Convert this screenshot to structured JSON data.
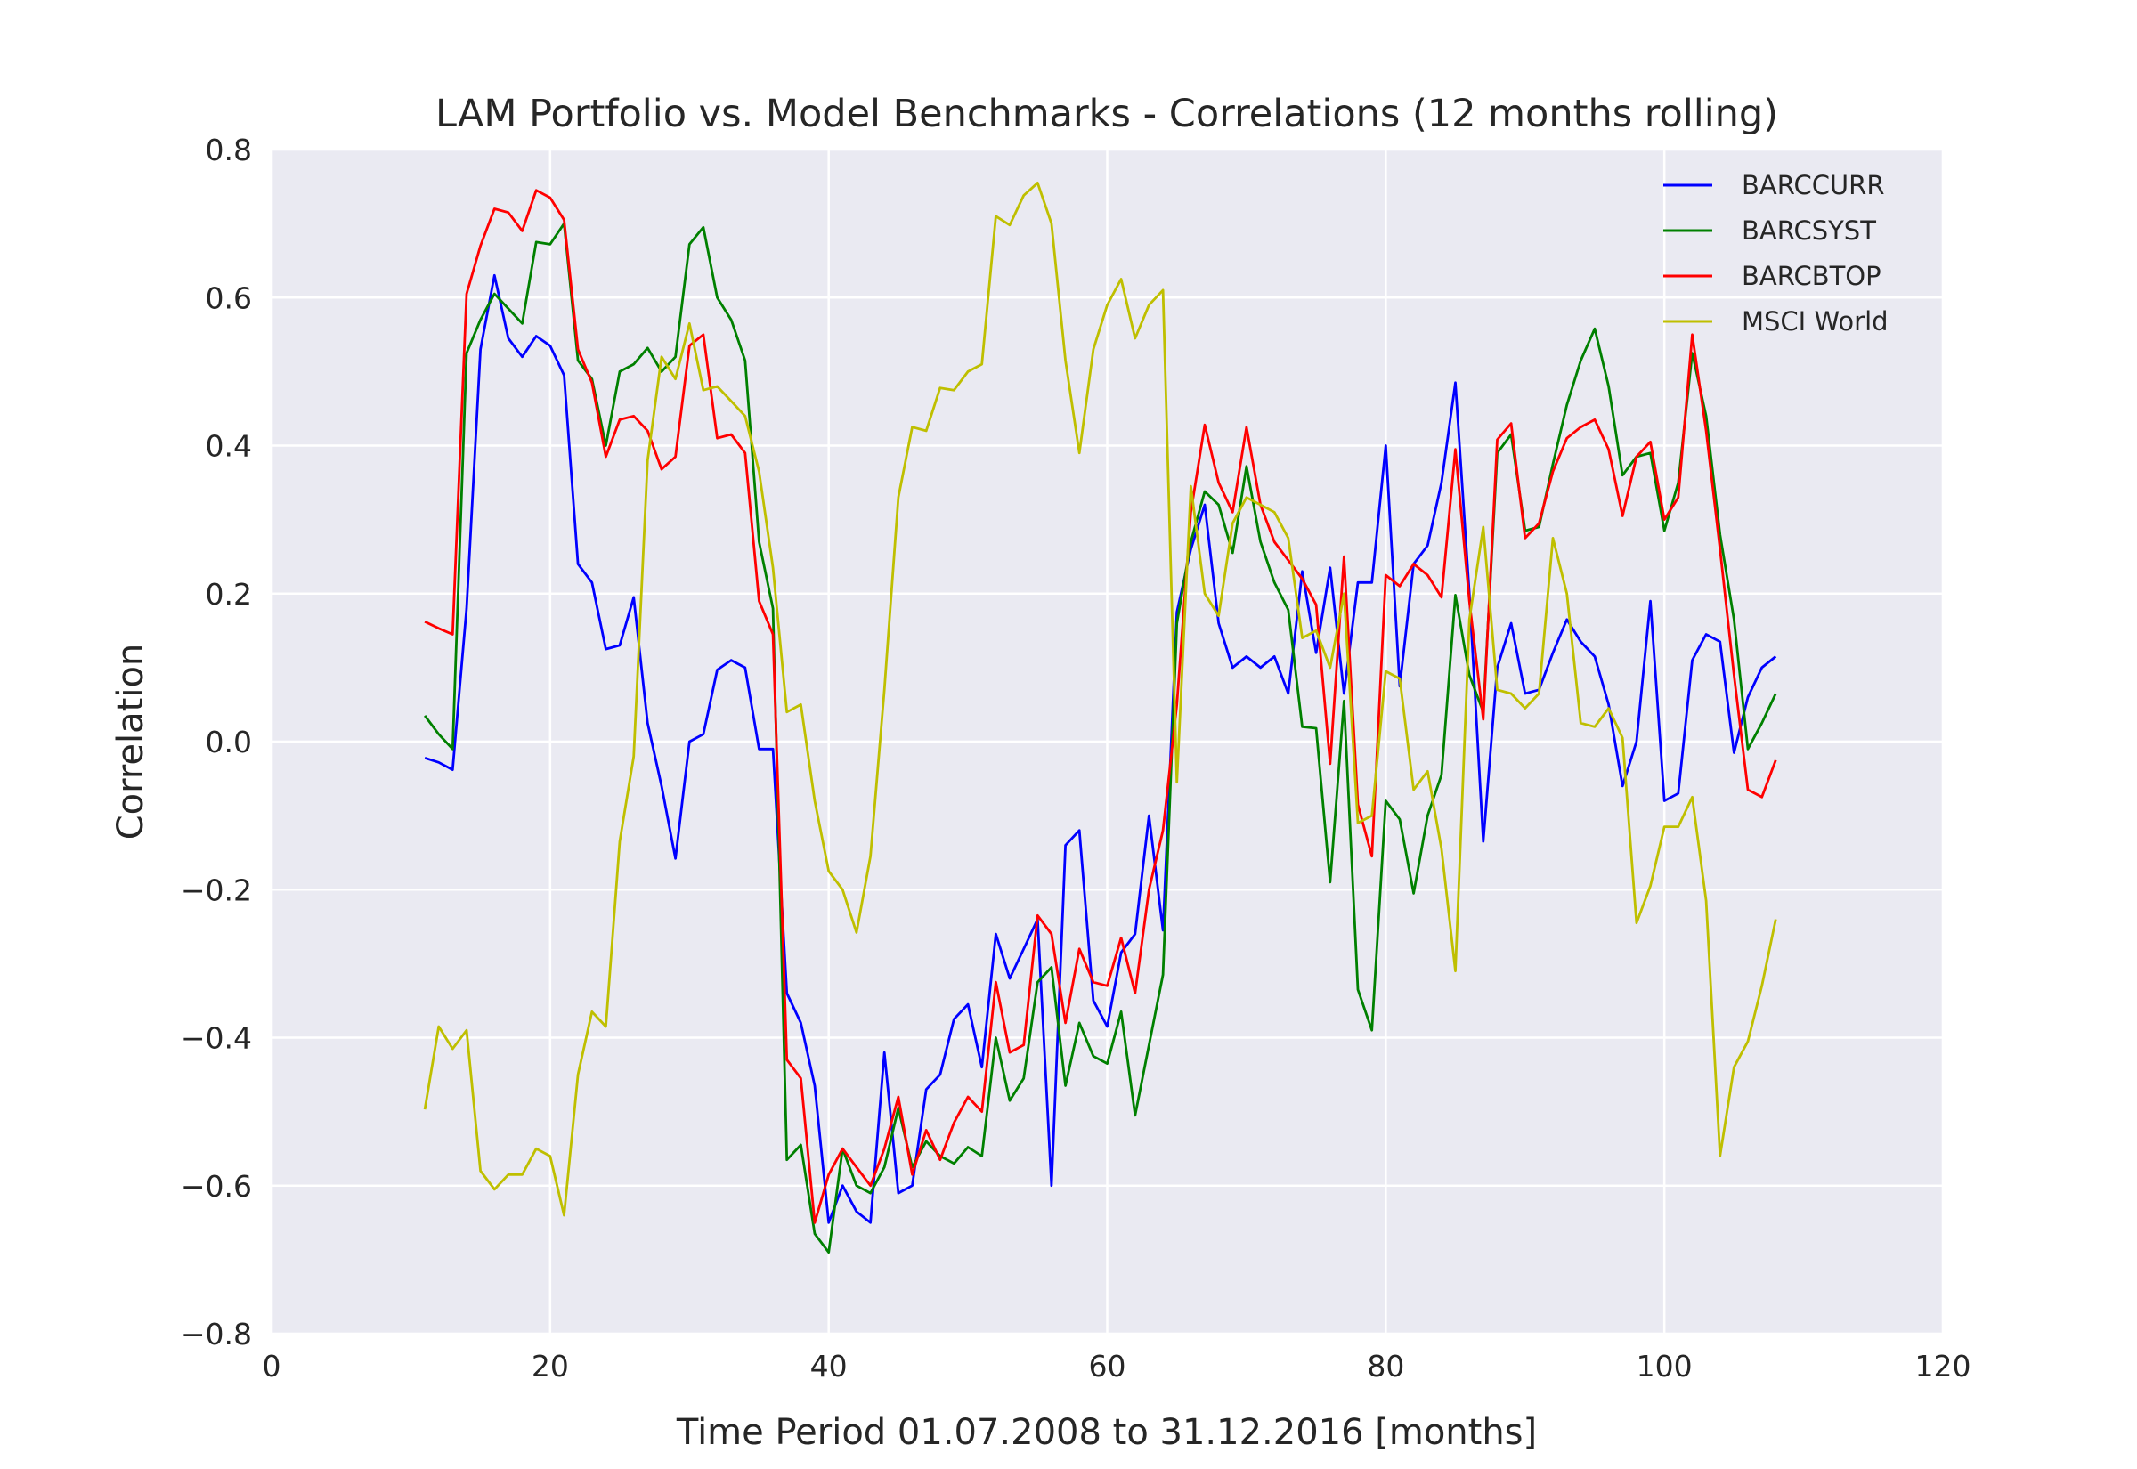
{
  "chart_data": {
    "type": "line",
    "title": "LAM Portfolio vs. Model Benchmarks - Correlations (12 months rolling)",
    "xlabel": "Time Period 01.07.2008 to 31.12.2016 [months]",
    "ylabel": "Correlation",
    "xlim": [
      0,
      120
    ],
    "ylim": [
      -0.8,
      0.8
    ],
    "xticks": [
      0,
      20,
      40,
      60,
      80,
      100,
      120
    ],
    "yticks": [
      -0.8,
      -0.6,
      -0.4,
      -0.2,
      0.0,
      0.2,
      0.4,
      0.6,
      0.8
    ],
    "xtick_labels": [
      "0",
      "20",
      "40",
      "60",
      "80",
      "100",
      "120"
    ],
    "ytick_labels": [
      "−0.8",
      "−0.6",
      "−0.4",
      "−0.2",
      "0.0",
      "0.2",
      "0.4",
      "0.6",
      "0.8"
    ],
    "grid": true,
    "background": "#eaeaf2",
    "legend_position": "top-right",
    "x": [
      11,
      12,
      13,
      14,
      15,
      16,
      17,
      18,
      19,
      20,
      21,
      22,
      23,
      24,
      25,
      26,
      27,
      28,
      29,
      30,
      31,
      32,
      33,
      34,
      35,
      36,
      37,
      38,
      39,
      40,
      41,
      42,
      43,
      44,
      45,
      46,
      47,
      48,
      49,
      50,
      51,
      52,
      53,
      54,
      55,
      56,
      57,
      58,
      59,
      60,
      61,
      62,
      63,
      64,
      65,
      66,
      67,
      68,
      69,
      70,
      71,
      72,
      73,
      74,
      75,
      76,
      77,
      78,
      79,
      80,
      81,
      82,
      83,
      84,
      85,
      86,
      87,
      88,
      89,
      90,
      91,
      92,
      93,
      94,
      95,
      96,
      97,
      98,
      99,
      100,
      101,
      102,
      103,
      104,
      105,
      106,
      107,
      108
    ],
    "series": [
      {
        "name": "BARCCURR",
        "color": "#0000ff",
        "values": [
          -0.022,
          -0.028,
          -0.038,
          0.18,
          0.53,
          0.63,
          0.545,
          0.52,
          0.548,
          0.535,
          0.495,
          0.24,
          0.215,
          0.125,
          0.13,
          0.195,
          0.025,
          -0.06,
          -0.158,
          0.0,
          0.01,
          0.097,
          0.11,
          0.1,
          -0.01,
          -0.01,
          -0.34,
          -0.38,
          -0.465,
          -0.65,
          -0.6,
          -0.635,
          -0.65,
          -0.42,
          -0.61,
          -0.6,
          -0.47,
          -0.45,
          -0.375,
          -0.355,
          -0.44,
          -0.26,
          -0.32,
          -0.28,
          -0.24,
          -0.6,
          -0.14,
          -0.12,
          -0.35,
          -0.385,
          -0.285,
          -0.26,
          -0.1,
          -0.255,
          0.175,
          0.26,
          0.32,
          0.16,
          0.1,
          0.115,
          0.1,
          0.115,
          0.065,
          0.23,
          0.12,
          0.235,
          0.065,
          0.215,
          0.215,
          0.4,
          0.075,
          0.24,
          0.265,
          0.35,
          0.485,
          0.2,
          -0.135,
          0.1,
          0.16,
          0.065,
          0.07,
          0.12,
          0.165,
          0.135,
          0.115,
          0.05,
          -0.06,
          0.0,
          0.19,
          -0.08,
          -0.07,
          0.11,
          0.145,
          0.135,
          -0.015,
          0.06,
          0.1,
          0.115
        ]
      },
      {
        "name": "BARCSYST",
        "color": "#008000",
        "values": [
          0.035,
          0.01,
          -0.01,
          0.525,
          0.57,
          0.605,
          0.585,
          0.565,
          0.675,
          0.672,
          0.7,
          0.515,
          0.49,
          0.4,
          0.5,
          0.51,
          0.532,
          0.5,
          0.52,
          0.672,
          0.695,
          0.6,
          0.57,
          0.515,
          0.27,
          0.18,
          -0.565,
          -0.545,
          -0.665,
          -0.69,
          -0.55,
          -0.6,
          -0.61,
          -0.575,
          -0.495,
          -0.575,
          -0.54,
          -0.56,
          -0.57,
          -0.548,
          -0.56,
          -0.4,
          -0.485,
          -0.455,
          -0.325,
          -0.305,
          -0.465,
          -0.38,
          -0.425,
          -0.435,
          -0.365,
          -0.505,
          -0.41,
          -0.315,
          0.16,
          0.27,
          0.338,
          0.32,
          0.255,
          0.372,
          0.27,
          0.215,
          0.178,
          0.02,
          0.018,
          -0.19,
          0.055,
          -0.335,
          -0.39,
          -0.08,
          -0.105,
          -0.205,
          -0.1,
          -0.045,
          0.198,
          0.09,
          0.04,
          0.39,
          0.415,
          0.285,
          0.29,
          0.375,
          0.455,
          0.515,
          0.558,
          0.48,
          0.36,
          0.385,
          0.39,
          0.285,
          0.35,
          0.525,
          0.44,
          0.28,
          0.165,
          -0.01,
          0.025,
          0.065
        ]
      },
      {
        "name": "BARCBTOP",
        "color": "#ff0000",
        "values": [
          0.162,
          0.153,
          0.145,
          0.605,
          0.67,
          0.72,
          0.715,
          0.69,
          0.745,
          0.735,
          0.705,
          0.53,
          0.485,
          0.385,
          0.435,
          0.44,
          0.42,
          0.368,
          0.385,
          0.535,
          0.55,
          0.41,
          0.415,
          0.39,
          0.19,
          0.145,
          -0.43,
          -0.455,
          -0.65,
          -0.585,
          -0.55,
          -0.575,
          -0.6,
          -0.55,
          -0.48,
          -0.585,
          -0.525,
          -0.565,
          -0.515,
          -0.48,
          -0.5,
          -0.325,
          -0.42,
          -0.41,
          -0.235,
          -0.26,
          -0.38,
          -0.28,
          -0.325,
          -0.33,
          -0.265,
          -0.34,
          -0.2,
          -0.12,
          0.05,
          0.31,
          0.428,
          0.35,
          0.31,
          0.425,
          0.32,
          0.27,
          0.245,
          0.22,
          0.185,
          -0.03,
          0.25,
          -0.085,
          -0.155,
          0.225,
          0.21,
          0.24,
          0.225,
          0.195,
          0.395,
          0.19,
          0.03,
          0.408,
          0.43,
          0.275,
          0.295,
          0.365,
          0.41,
          0.425,
          0.435,
          0.395,
          0.305,
          0.385,
          0.405,
          0.3,
          0.33,
          0.55,
          0.42,
          0.26,
          0.09,
          -0.065,
          -0.075,
          -0.025
        ]
      },
      {
        "name": "MSCI World",
        "color": "#bfbf00",
        "values": [
          -0.497,
          -0.385,
          -0.415,
          -0.39,
          -0.58,
          -0.605,
          -0.585,
          -0.585,
          -0.55,
          -0.56,
          -0.64,
          -0.45,
          -0.365,
          -0.385,
          -0.135,
          -0.02,
          0.38,
          0.52,
          0.49,
          0.565,
          0.475,
          0.48,
          0.46,
          0.44,
          0.365,
          0.235,
          0.04,
          0.05,
          -0.08,
          -0.175,
          -0.2,
          -0.258,
          -0.155,
          0.07,
          0.33,
          0.425,
          0.42,
          0.478,
          0.475,
          0.5,
          0.51,
          0.71,
          0.698,
          0.738,
          0.755,
          0.7,
          0.515,
          0.39,
          0.53,
          0.59,
          0.625,
          0.545,
          0.59,
          0.61,
          -0.055,
          0.345,
          0.2,
          0.17,
          0.295,
          0.33,
          0.32,
          0.31,
          0.275,
          0.14,
          0.15,
          0.1,
          0.2,
          -0.11,
          -0.1,
          0.095,
          0.085,
          -0.065,
          -0.04,
          -0.145,
          -0.31,
          0.165,
          0.29,
          0.07,
          0.065,
          0.045,
          0.065,
          0.275,
          0.2,
          0.025,
          0.02,
          0.045,
          0.005,
          -0.245,
          -0.195,
          -0.115,
          -0.115,
          -0.075,
          -0.215,
          -0.56,
          -0.44,
          -0.405,
          -0.33,
          -0.24
        ]
      }
    ]
  }
}
